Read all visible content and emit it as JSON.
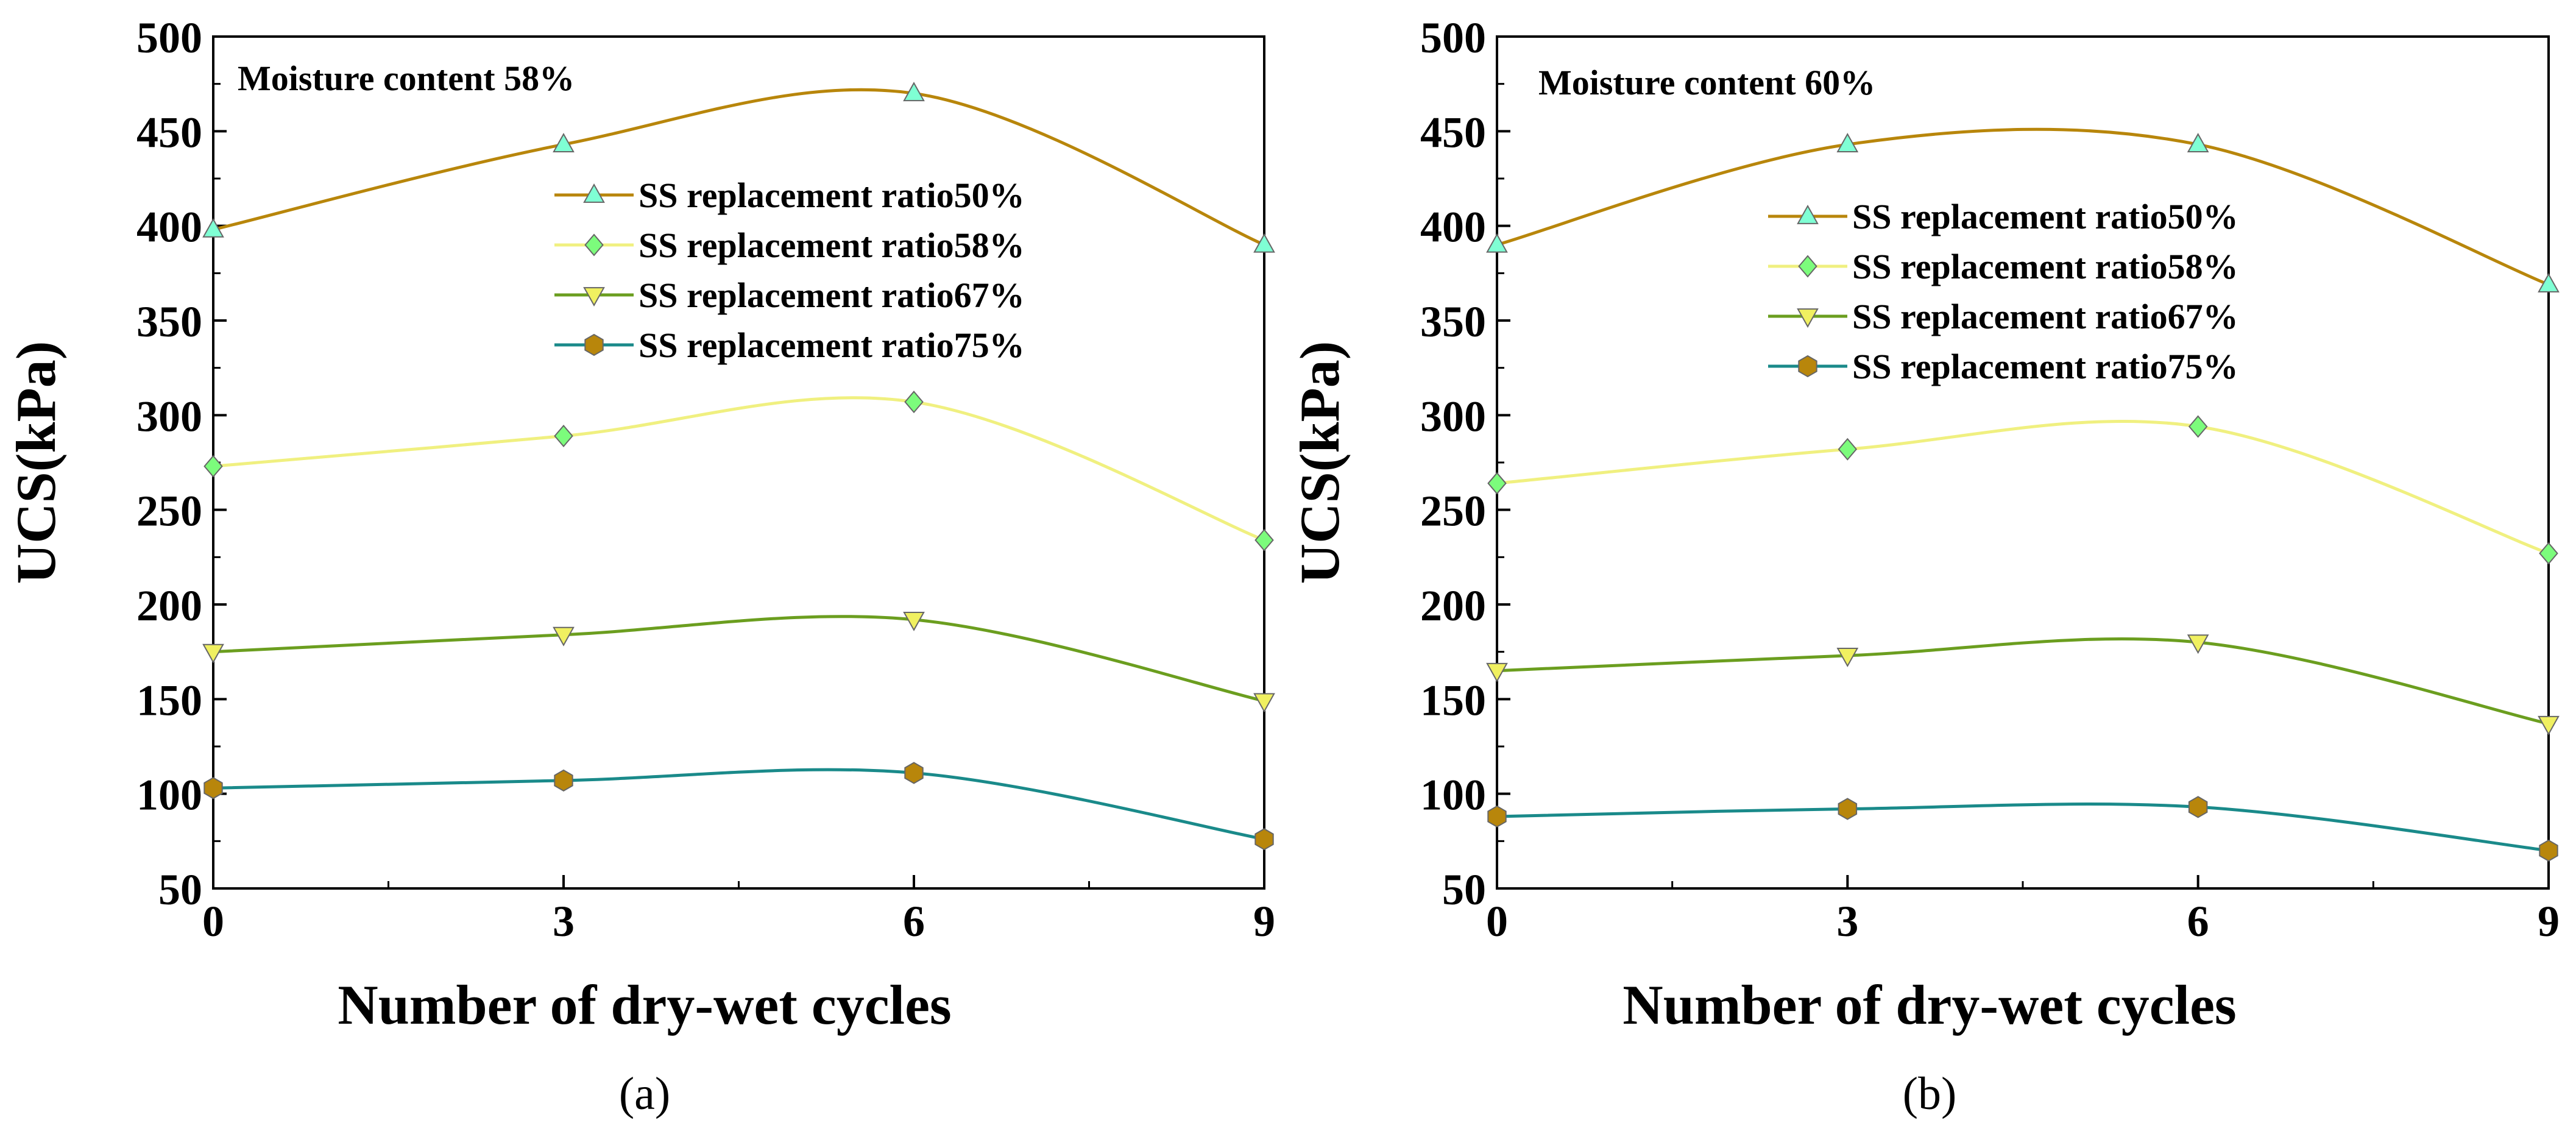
{
  "chart_data": [
    {
      "type": "line",
      "panel_label": "(a)",
      "annotation": "Moisture content 58%",
      "xlabel": "Number of dry-wet cycles",
      "ylabel": "UCS(kPa)",
      "x": [
        0,
        3,
        6,
        9
      ],
      "xlim": [
        0,
        9
      ],
      "ylim": [
        50,
        500
      ],
      "xticks": [
        "0",
        "3",
        "6",
        "9"
      ],
      "yticks": [
        "50",
        "100",
        "150",
        "200",
        "250",
        "300",
        "350",
        "400",
        "450",
        "500"
      ],
      "grid": false,
      "legend_position": "top-right",
      "series": [
        {
          "name": "SS replacement ratio50%",
          "values": [
            398,
            443,
            470,
            390
          ],
          "line_color": "#B8860B",
          "marker": "triangle-up",
          "marker_color": "#7FFFD4"
        },
        {
          "name": "SS replacement ratio58%",
          "values": [
            273,
            289,
            307,
            234
          ],
          "line_color": "#F0F080",
          "marker": "diamond",
          "marker_color": "#7CFC7C"
        },
        {
          "name": "SS replacement ratio67%",
          "values": [
            175,
            184,
            192,
            149
          ],
          "line_color": "#6B9E1F",
          "marker": "triangle-down",
          "marker_color": "#F0F060"
        },
        {
          "name": "SS replacement ratio75%",
          "values": [
            103,
            107,
            111,
            76
          ],
          "line_color": "#1A8A8A",
          "marker": "hexagon",
          "marker_color": "#B8860B"
        }
      ]
    },
    {
      "type": "line",
      "panel_label": "(b)",
      "annotation": "Moisture content 60%",
      "xlabel": "Number of dry-wet cycles",
      "ylabel": "UCS(kPa)",
      "x": [
        0,
        3,
        6,
        9
      ],
      "xlim": [
        0,
        9
      ],
      "ylim": [
        50,
        500
      ],
      "xticks": [
        "0",
        "3",
        "6",
        "9"
      ],
      "yticks": [
        "50",
        "100",
        "150",
        "200",
        "250",
        "300",
        "350",
        "400",
        "450",
        "500"
      ],
      "grid": false,
      "legend_position": "top-right",
      "series": [
        {
          "name": "SS replacement ratio50%",
          "values": [
            390,
            443,
            443,
            369
          ],
          "line_color": "#B8860B",
          "marker": "triangle-up",
          "marker_color": "#7FFFD4"
        },
        {
          "name": "SS replacement ratio58%",
          "values": [
            264,
            282,
            294,
            227
          ],
          "line_color": "#F0F080",
          "marker": "diamond",
          "marker_color": "#7CFC7C"
        },
        {
          "name": "SS replacement ratio67%",
          "values": [
            165,
            173,
            180,
            137
          ],
          "line_color": "#6B9E1F",
          "marker": "triangle-down",
          "marker_color": "#F0F060"
        },
        {
          "name": "SS replacement ratio75%",
          "values": [
            88,
            92,
            93,
            70
          ],
          "line_color": "#1A8A8A",
          "marker": "hexagon",
          "marker_color": "#B8860B"
        }
      ]
    }
  ]
}
